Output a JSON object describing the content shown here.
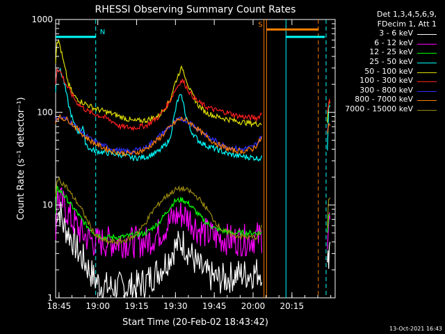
{
  "chart_data": {
    "type": "line",
    "title": "RHESSI Observing Summary Count Rates",
    "xlabel": "Start Time (20-Feb-02 18:43:42)",
    "ylabel": "Count Rate (s⁻¹ detector⁻¹)",
    "ylim": [
      1,
      1000
    ],
    "yscale": "log",
    "x_range_min": [
      0,
      108
    ],
    "x_ticks": [
      "18:45",
      "19:00",
      "19:15",
      "19:30",
      "19:45",
      "20:00",
      "20:15"
    ],
    "x_tick_min": [
      1.3,
      16.3,
      31.3,
      46.3,
      61.3,
      76.3,
      91.3
    ],
    "y_ticks": [
      "1",
      "10",
      "100",
      "1000"
    ],
    "y_tick_values": [
      1,
      10,
      100,
      1000
    ],
    "legend_header": [
      "Det 1,3,4,5,6,9,",
      "FDecim 1, Att 1"
    ],
    "legend_position": "right",
    "flags": [
      {
        "label": "N",
        "color": "#00ffff",
        "level": 650,
        "x_start": 0,
        "x_end": 15.5
      },
      {
        "label": "S",
        "color": "#ff8000",
        "level": 780,
        "x_start": 81.5,
        "x_end": 101.5
      },
      {
        "label": "",
        "color": "#00ffff",
        "level": 650,
        "x_start": 89,
        "x_end": 104
      }
    ],
    "vertical_markers": [
      {
        "min": 15.5,
        "color": "#00ffff",
        "style": "dash"
      },
      {
        "min": 80.5,
        "color": "#ff8000",
        "style": "solid"
      },
      {
        "min": 81.5,
        "color": "#ff8000",
        "style": "solid"
      },
      {
        "min": 89,
        "color": "#00ffff",
        "style": "solid"
      },
      {
        "min": 101.5,
        "color": "#ff8000",
        "style": "dash"
      },
      {
        "min": 104.5,
        "color": "#00ffff",
        "style": "dash"
      }
    ],
    "data_gap": [
      80,
      105
    ],
    "series": [
      {
        "name": "3 - 6 keV",
        "color": "#ffffff",
        "points": [
          [
            0,
            4
          ],
          [
            0.5,
            9
          ],
          [
            2,
            8
          ],
          [
            3,
            6
          ],
          [
            5,
            5
          ],
          [
            7,
            4
          ],
          [
            9,
            3
          ],
          [
            11,
            2.5
          ],
          [
            13,
            2
          ],
          [
            15,
            1.6
          ],
          [
            17,
            1.4
          ],
          [
            20,
            1.3
          ],
          [
            25,
            1.3
          ],
          [
            30,
            1.3
          ],
          [
            35,
            1.5
          ],
          [
            40,
            2
          ],
          [
            43,
            2.5
          ],
          [
            46,
            3.5
          ],
          [
            49,
            4
          ],
          [
            52,
            3
          ],
          [
            55,
            2.2
          ],
          [
            58,
            1.8
          ],
          [
            62,
            1.6
          ],
          [
            66,
            1.6
          ],
          [
            70,
            1.8
          ],
          [
            74,
            1.8
          ],
          [
            78,
            1.9
          ],
          [
            80,
            2
          ],
          [
            105,
            2
          ],
          [
            105.5,
            3
          ],
          [
            106,
            4
          ]
        ]
      },
      {
        "name": "6 - 12 keV",
        "color": "#ff00ff",
        "points": [
          [
            0,
            5
          ],
          [
            0.5,
            12
          ],
          [
            2,
            11
          ],
          [
            4,
            9
          ],
          [
            6,
            7
          ],
          [
            8,
            6
          ],
          [
            10,
            5
          ],
          [
            12,
            4.5
          ],
          [
            15,
            4
          ],
          [
            18,
            4
          ],
          [
            25,
            4
          ],
          [
            35,
            4
          ],
          [
            40,
            5
          ],
          [
            43,
            6
          ],
          [
            46,
            7.5
          ],
          [
            49,
            8
          ],
          [
            52,
            7
          ],
          [
            55,
            5.5
          ],
          [
            58,
            5
          ],
          [
            62,
            4.5
          ],
          [
            68,
            4.2
          ],
          [
            74,
            4.2
          ],
          [
            78,
            4.5
          ],
          [
            80,
            4.5
          ],
          [
            105,
            4.5
          ],
          [
            105.5,
            6.5
          ],
          [
            106,
            7
          ]
        ]
      },
      {
        "name": "12 - 25 keV",
        "color": "#00ff00",
        "points": [
          [
            0,
            8
          ],
          [
            0.5,
            15
          ],
          [
            2,
            14
          ],
          [
            4,
            12
          ],
          [
            6,
            10
          ],
          [
            8,
            8.5
          ],
          [
            10,
            7
          ],
          [
            12,
            6
          ],
          [
            15,
            5
          ],
          [
            18,
            4.5
          ],
          [
            25,
            4.5
          ],
          [
            35,
            5
          ],
          [
            40,
            6.5
          ],
          [
            43,
            8.5
          ],
          [
            46,
            11
          ],
          [
            49,
            11.5
          ],
          [
            52,
            10
          ],
          [
            55,
            8
          ],
          [
            58,
            6.5
          ],
          [
            62,
            5.5
          ],
          [
            68,
            5
          ],
          [
            74,
            5
          ],
          [
            78,
            5
          ],
          [
            80,
            5
          ],
          [
            105,
            5
          ],
          [
            105.5,
            8
          ],
          [
            106,
            8
          ]
        ]
      },
      {
        "name": "25 - 50 keV",
        "color": "#00ffff",
        "points": [
          [
            0,
            170
          ],
          [
            0.5,
            300
          ],
          [
            1.5,
            290
          ],
          [
            3,
            230
          ],
          [
            5,
            120
          ],
          [
            7,
            75
          ],
          [
            9,
            60
          ],
          [
            10.5,
            70
          ],
          [
            11.5,
            48
          ],
          [
            13,
            40
          ],
          [
            18,
            37
          ],
          [
            25,
            35
          ],
          [
            30,
            32
          ],
          [
            35,
            33
          ],
          [
            40,
            38
          ],
          [
            44,
            50
          ],
          [
            46,
            95
          ],
          [
            47,
            130
          ],
          [
            48,
            150
          ],
          [
            49,
            140
          ],
          [
            50,
            100
          ],
          [
            52,
            65
          ],
          [
            55,
            50
          ],
          [
            58,
            44
          ],
          [
            62,
            40
          ],
          [
            66,
            36
          ],
          [
            70,
            34
          ],
          [
            74,
            33
          ],
          [
            78,
            32
          ],
          [
            80,
            32
          ],
          [
            105,
            40
          ],
          [
            105.5,
            120
          ],
          [
            106,
            120
          ]
        ]
      },
      {
        "name": "50 - 100 keV",
        "color": "#e0e000",
        "points": [
          [
            0,
            350
          ],
          [
            0.5,
            600
          ],
          [
            1.5,
            550
          ],
          [
            3,
            350
          ],
          [
            5,
            200
          ],
          [
            7,
            150
          ],
          [
            10,
            130
          ],
          [
            15,
            110
          ],
          [
            20,
            100
          ],
          [
            25,
            90
          ],
          [
            30,
            80
          ],
          [
            35,
            82
          ],
          [
            40,
            92
          ],
          [
            44,
            130
          ],
          [
            46,
            200
          ],
          [
            48,
            280
          ],
          [
            49,
            300
          ],
          [
            50,
            250
          ],
          [
            52,
            170
          ],
          [
            55,
            120
          ],
          [
            58,
            100
          ],
          [
            62,
            90
          ],
          [
            66,
            85
          ],
          [
            70,
            80
          ],
          [
            74,
            77
          ],
          [
            78,
            75
          ],
          [
            80,
            77
          ],
          [
            105,
            80
          ],
          [
            105.5,
            125
          ],
          [
            106,
            125
          ]
        ]
      },
      {
        "name": "100 - 300 keV",
        "color": "#ff2020",
        "points": [
          [
            0,
            200
          ],
          [
            0.5,
            300
          ],
          [
            2,
            270
          ],
          [
            4,
            200
          ],
          [
            6,
            160
          ],
          [
            8,
            130
          ],
          [
            10,
            115
          ],
          [
            13,
            100
          ],
          [
            18,
            90
          ],
          [
            22,
            80
          ],
          [
            25,
            70
          ],
          [
            30,
            68
          ],
          [
            35,
            72
          ],
          [
            40,
            90
          ],
          [
            44,
            130
          ],
          [
            46,
            170
          ],
          [
            48,
            210
          ],
          [
            49,
            220
          ],
          [
            50,
            200
          ],
          [
            52,
            160
          ],
          [
            55,
            130
          ],
          [
            58,
            115
          ],
          [
            62,
            105
          ],
          [
            66,
            100
          ],
          [
            70,
            92
          ],
          [
            74,
            88
          ],
          [
            78,
            87
          ],
          [
            80,
            100
          ],
          [
            105,
            100
          ],
          [
            105.5,
            130
          ],
          [
            106,
            130
          ]
        ]
      },
      {
        "name": "300 - 800 keV",
        "color": "#3030ff",
        "points": [
          [
            0,
            80
          ],
          [
            0.5,
            88
          ],
          [
            2,
            88
          ],
          [
            5,
            82
          ],
          [
            8,
            70
          ],
          [
            11,
            58
          ],
          [
            14,
            50
          ],
          [
            18,
            44
          ],
          [
            22,
            40
          ],
          [
            26,
            38
          ],
          [
            30,
            38
          ],
          [
            35,
            42
          ],
          [
            40,
            55
          ],
          [
            44,
            70
          ],
          [
            47,
            82
          ],
          [
            49,
            85
          ],
          [
            51,
            80
          ],
          [
            54,
            70
          ],
          [
            57,
            60
          ],
          [
            60,
            52
          ],
          [
            64,
            45
          ],
          [
            68,
            41
          ],
          [
            72,
            40
          ],
          [
            76,
            42
          ],
          [
            78,
            47
          ],
          [
            80,
            58
          ],
          [
            105,
            60
          ],
          [
            105.5,
            75
          ],
          [
            106,
            75
          ]
        ]
      },
      {
        "name": "800 - 7000 keV",
        "color": "#ff8000",
        "points": [
          [
            0,
            80
          ],
          [
            0.5,
            88
          ],
          [
            2,
            88
          ],
          [
            5,
            82
          ],
          [
            8,
            68
          ],
          [
            11,
            56
          ],
          [
            14,
            48
          ],
          [
            18,
            42
          ],
          [
            22,
            38
          ],
          [
            26,
            36
          ],
          [
            30,
            36
          ],
          [
            35,
            40
          ],
          [
            40,
            52
          ],
          [
            44,
            68
          ],
          [
            47,
            82
          ],
          [
            49,
            85
          ],
          [
            51,
            80
          ],
          [
            54,
            70
          ],
          [
            57,
            58
          ],
          [
            60,
            50
          ],
          [
            64,
            43
          ],
          [
            68,
            39
          ],
          [
            72,
            38
          ],
          [
            76,
            40
          ],
          [
            78,
            45
          ],
          [
            80,
            55
          ],
          [
            105,
            58
          ],
          [
            105.5,
            72
          ],
          [
            106,
            72
          ]
        ]
      },
      {
        "name": "7000 - 15000 keV",
        "color": "#9a8a10",
        "points": [
          [
            0,
            12
          ],
          [
            0.5,
            19
          ],
          [
            2,
            18
          ],
          [
            4,
            16
          ],
          [
            6,
            13
          ],
          [
            8,
            11
          ],
          [
            10,
            9
          ],
          [
            12,
            7
          ],
          [
            14,
            5.5
          ],
          [
            16,
            4.5
          ],
          [
            20,
            4
          ],
          [
            25,
            4
          ],
          [
            30,
            4.5
          ],
          [
            34,
            6
          ],
          [
            38,
            9
          ],
          [
            42,
            12
          ],
          [
            46,
            14.5
          ],
          [
            49,
            15
          ],
          [
            52,
            14
          ],
          [
            55,
            12
          ],
          [
            58,
            9.5
          ],
          [
            61,
            7
          ],
          [
            64,
            5.5
          ],
          [
            68,
            4.8
          ],
          [
            74,
            4.5
          ],
          [
            78,
            4.5
          ],
          [
            80,
            6
          ],
          [
            105,
            6
          ],
          [
            105.5,
            12
          ],
          [
            106,
            12
          ]
        ]
      }
    ]
  },
  "footer_stamp": "13-Oct-2021 16:43"
}
